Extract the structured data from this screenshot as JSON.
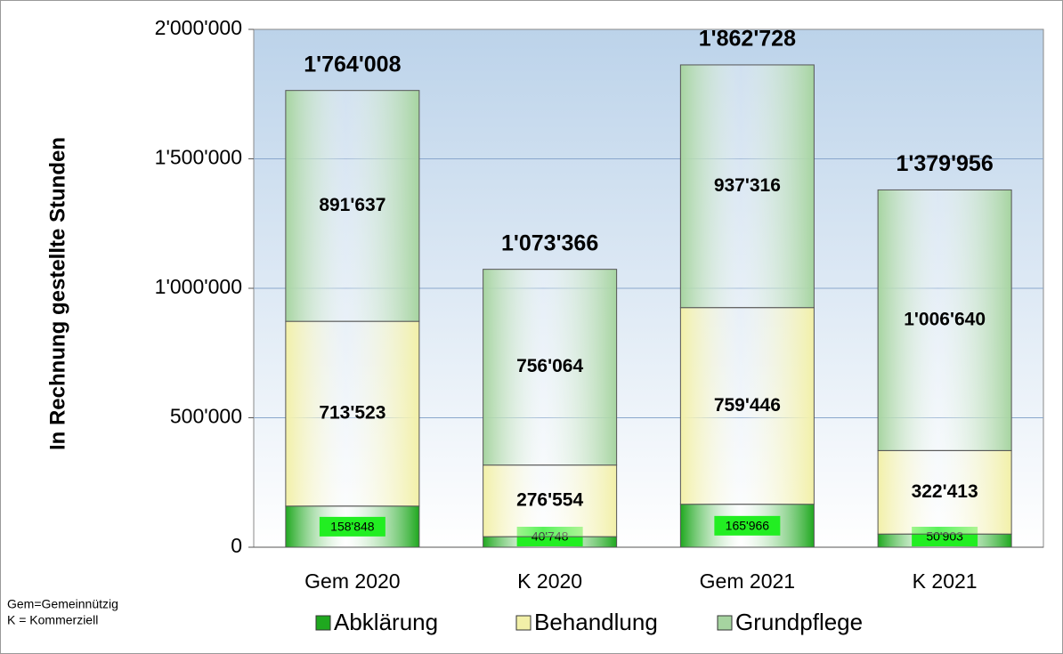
{
  "chart_data": {
    "type": "stacked_bar",
    "ylabel": "In Rechnung gestellte Stunden",
    "categories": [
      "Gem 2020",
      "K 2020",
      "Gem 2021",
      "K 2021"
    ],
    "series": [
      {
        "name": "Abklärung",
        "color": "#1fa81f",
        "values": [
          158848,
          40748,
          165966,
          50903
        ],
        "value_labels": [
          "158'848",
          "40'748",
          "165'966",
          "50'903"
        ]
      },
      {
        "name": "Behandlung",
        "color": "#f2f0a8",
        "values": [
          713523,
          276554,
          759446,
          322413
        ],
        "value_labels": [
          "713'523",
          "276'554",
          "759'446",
          "322'413"
        ]
      },
      {
        "name": "Grundpflege",
        "color": "#a6d4a0",
        "values": [
          891637,
          756064,
          937316,
          1006640
        ],
        "value_labels": [
          "891'637",
          "756'064",
          "937'316",
          "1'006'640"
        ]
      }
    ],
    "totals": [
      1764008,
      1073366,
      1862728,
      1379956
    ],
    "total_labels": [
      "1'764'008",
      "1'073'366",
      "1'862'728",
      "1'379'956"
    ],
    "ylim": [
      0,
      2000000
    ],
    "yticks": [
      0,
      {
        "value": 500000,
        "label": "500'000"
      },
      {
        "value": 1000000,
        "label": "1'000'000"
      },
      {
        "value": 1500000,
        "label": "1'500'000"
      },
      {
        "value": 2000000,
        "label": "2'000'000"
      }
    ],
    "grid": true,
    "legend": "bottom",
    "notes": [
      "Gem=Gemeinnützig",
      "K = Kommerziell"
    ]
  }
}
